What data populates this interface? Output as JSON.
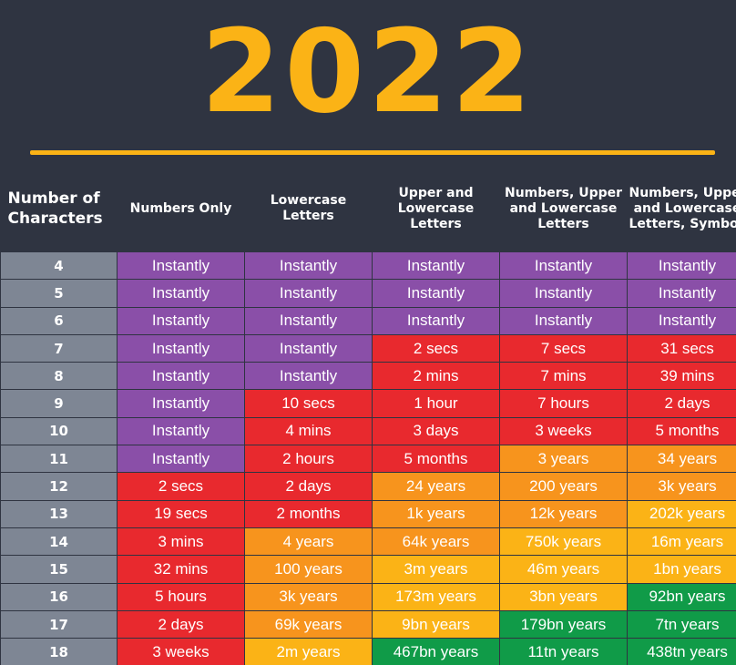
{
  "title": "2022",
  "colors": {
    "background": "#2f3441",
    "accent": "#fbb316",
    "instant": "#8a4fa8",
    "red": "#e8292e",
    "orange": "#f7941d",
    "yellow": "#fbb316",
    "green": "#109b48",
    "number_column": "#7e8694"
  },
  "headers": [
    [
      "Number of",
      "Characters"
    ],
    [
      "Numbers Only"
    ],
    [
      "Lowercase",
      "Letters"
    ],
    [
      "Upper and",
      "Lowercase",
      "Letters"
    ],
    [
      "Numbers, Upper",
      "and Lowercase",
      "Letters"
    ],
    [
      "Numbers, Upper",
      "and Lowercase",
      "Letters, Symbols"
    ]
  ],
  "rows": [
    {
      "n": "4",
      "cells": [
        {
          "t": "Instantly",
          "c": "purple"
        },
        {
          "t": "Instantly",
          "c": "purple"
        },
        {
          "t": "Instantly",
          "c": "purple"
        },
        {
          "t": "Instantly",
          "c": "purple"
        },
        {
          "t": "Instantly",
          "c": "purple"
        }
      ]
    },
    {
      "n": "5",
      "cells": [
        {
          "t": "Instantly",
          "c": "purple"
        },
        {
          "t": "Instantly",
          "c": "purple"
        },
        {
          "t": "Instantly",
          "c": "purple"
        },
        {
          "t": "Instantly",
          "c": "purple"
        },
        {
          "t": "Instantly",
          "c": "purple"
        }
      ]
    },
    {
      "n": "6",
      "cells": [
        {
          "t": "Instantly",
          "c": "purple"
        },
        {
          "t": "Instantly",
          "c": "purple"
        },
        {
          "t": "Instantly",
          "c": "purple"
        },
        {
          "t": "Instantly",
          "c": "purple"
        },
        {
          "t": "Instantly",
          "c": "purple"
        }
      ]
    },
    {
      "n": "7",
      "cells": [
        {
          "t": "Instantly",
          "c": "purple"
        },
        {
          "t": "Instantly",
          "c": "purple"
        },
        {
          "t": "2 secs",
          "c": "red"
        },
        {
          "t": "7 secs",
          "c": "red"
        },
        {
          "t": "31 secs",
          "c": "red"
        }
      ]
    },
    {
      "n": "8",
      "cells": [
        {
          "t": "Instantly",
          "c": "purple"
        },
        {
          "t": "Instantly",
          "c": "purple"
        },
        {
          "t": "2 mins",
          "c": "red"
        },
        {
          "t": "7 mins",
          "c": "red"
        },
        {
          "t": "39 mins",
          "c": "red"
        }
      ]
    },
    {
      "n": "9",
      "cells": [
        {
          "t": "Instantly",
          "c": "purple"
        },
        {
          "t": "10 secs",
          "c": "red"
        },
        {
          "t": "1 hour",
          "c": "red"
        },
        {
          "t": "7 hours",
          "c": "red"
        },
        {
          "t": "2 days",
          "c": "red"
        }
      ]
    },
    {
      "n": "10",
      "cells": [
        {
          "t": "Instantly",
          "c": "purple"
        },
        {
          "t": "4 mins",
          "c": "red"
        },
        {
          "t": "3 days",
          "c": "red"
        },
        {
          "t": "3 weeks",
          "c": "red"
        },
        {
          "t": "5 months",
          "c": "red"
        }
      ]
    },
    {
      "n": "11",
      "cells": [
        {
          "t": "Instantly",
          "c": "purple"
        },
        {
          "t": "2 hours",
          "c": "red"
        },
        {
          "t": "5 months",
          "c": "red"
        },
        {
          "t": "3 years",
          "c": "orange"
        },
        {
          "t": "34 years",
          "c": "orange"
        }
      ]
    },
    {
      "n": "12",
      "cells": [
        {
          "t": "2 secs",
          "c": "red"
        },
        {
          "t": "2 days",
          "c": "red"
        },
        {
          "t": "24 years",
          "c": "orange"
        },
        {
          "t": "200 years",
          "c": "orange"
        },
        {
          "t": "3k years",
          "c": "orange"
        }
      ]
    },
    {
      "n": "13",
      "cells": [
        {
          "t": "19 secs",
          "c": "red"
        },
        {
          "t": "2 months",
          "c": "red"
        },
        {
          "t": "1k years",
          "c": "orange"
        },
        {
          "t": "12k years",
          "c": "orange"
        },
        {
          "t": "202k years",
          "c": "yellow"
        }
      ]
    },
    {
      "n": "14",
      "cells": [
        {
          "t": "3 mins",
          "c": "red"
        },
        {
          "t": "4 years",
          "c": "orange"
        },
        {
          "t": "64k years",
          "c": "orange"
        },
        {
          "t": "750k years",
          "c": "yellow"
        },
        {
          "t": "16m years",
          "c": "yellow"
        }
      ]
    },
    {
      "n": "15",
      "cells": [
        {
          "t": "32 mins",
          "c": "red"
        },
        {
          "t": "100 years",
          "c": "orange"
        },
        {
          "t": "3m years",
          "c": "yellow"
        },
        {
          "t": "46m years",
          "c": "yellow"
        },
        {
          "t": "1bn years",
          "c": "yellow"
        }
      ]
    },
    {
      "n": "16",
      "cells": [
        {
          "t": "5 hours",
          "c": "red"
        },
        {
          "t": "3k years",
          "c": "orange"
        },
        {
          "t": "173m years",
          "c": "yellow"
        },
        {
          "t": "3bn years",
          "c": "yellow"
        },
        {
          "t": "92bn years",
          "c": "green"
        }
      ]
    },
    {
      "n": "17",
      "cells": [
        {
          "t": "2 days",
          "c": "red"
        },
        {
          "t": "69k years",
          "c": "orange"
        },
        {
          "t": "9bn years",
          "c": "yellow"
        },
        {
          "t": "179bn years",
          "c": "green"
        },
        {
          "t": "7tn years",
          "c": "green"
        }
      ]
    },
    {
      "n": "18",
      "cells": [
        {
          "t": "3 weeks",
          "c": "red"
        },
        {
          "t": "2m years",
          "c": "yellow"
        },
        {
          "t": "467bn years",
          "c": "green"
        },
        {
          "t": "11tn years",
          "c": "green"
        },
        {
          "t": "438tn years",
          "c": "green"
        }
      ]
    }
  ]
}
